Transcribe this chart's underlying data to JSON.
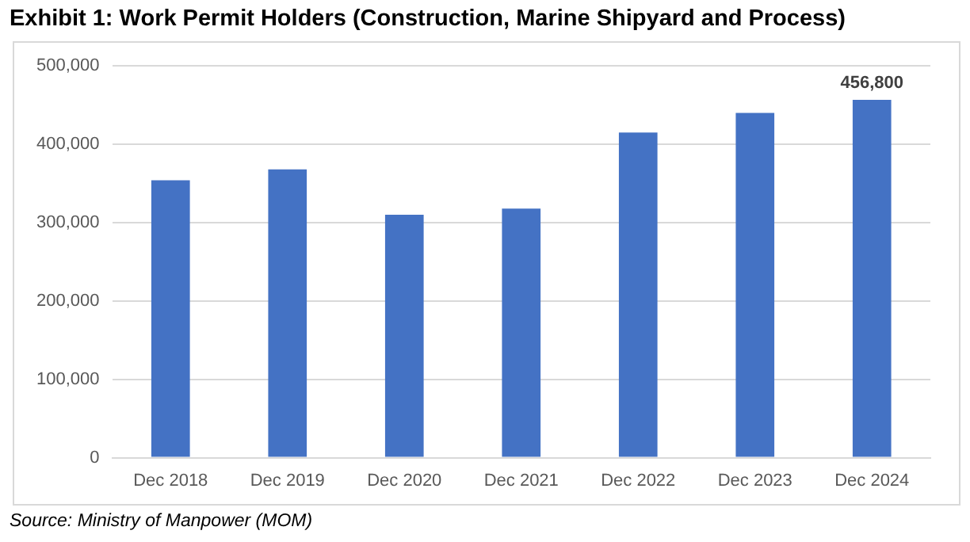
{
  "chart_data": {
    "type": "bar",
    "title": "Exhibit 1: Work Permit Holders (Construction, Marine Shipyard and Process)",
    "categories": [
      "Dec 2018",
      "Dec 2019",
      "Dec 2020",
      "Dec 2021",
      "Dec 2022",
      "Dec 2023",
      "Dec 2024"
    ],
    "values": [
      354000,
      368000,
      310000,
      318000,
      415000,
      440000,
      456800
    ],
    "value_labels": [
      null,
      null,
      null,
      null,
      null,
      null,
      "456,800"
    ],
    "color": "#4472c4",
    "ylim": [
      0,
      500000
    ],
    "yticks": [
      {
        "value": 0,
        "label": "0"
      },
      {
        "value": 100000,
        "label": "100,000"
      },
      {
        "value": 200000,
        "label": "200,000"
      },
      {
        "value": 300000,
        "label": "300,000"
      },
      {
        "value": 400000,
        "label": "400,000"
      },
      {
        "value": 500000,
        "label": "500,000"
      }
    ],
    "grid": "y",
    "legend": false,
    "annotations": [
      "Source: Ministry of Manpower (MOM)"
    ]
  }
}
